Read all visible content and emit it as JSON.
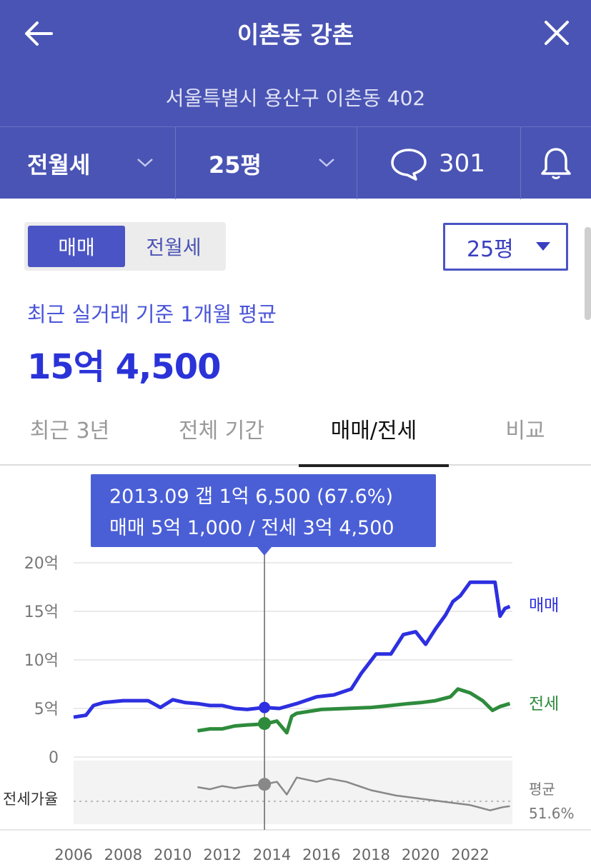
{
  "header": {
    "title": "이촌동 강촌",
    "address": "서울특별시 용산구 이촌동 402",
    "filters": {
      "deal_type": "전월세",
      "size": "25평",
      "comments_count": "301"
    },
    "icons": {
      "back": "arrow-left-icon",
      "close": "close-icon",
      "comment": "speech-bubble-icon",
      "bell": "bell-icon",
      "chevron": "chevron-down-icon"
    }
  },
  "controls": {
    "segment": [
      "매매",
      "전월세"
    ],
    "segment_selected": "매매",
    "size_select": "25평"
  },
  "summary": {
    "label": "최근 실거래 기준 1개월 평균",
    "price": "15억 4,500"
  },
  "tabs": [
    "최근 3년",
    "전체 기간",
    "매매/전세",
    "비교"
  ],
  "selected_tab": "매매/전세",
  "tooltip": {
    "line1": "2013.09  갭 1억 6,500 (67.6%)",
    "line2": "매매 5억 1,000 / 전세 3억 4,500"
  },
  "colors": {
    "header_bg": "#4a54b4",
    "accent": "#4a54c4",
    "sale": "#2d2fe0",
    "jeonse": "#2e8b3c",
    "ratio": "#888888",
    "tooltip_bg": "#4a5fd6"
  },
  "chart_data": {
    "type": "line",
    "title": "",
    "x_tick_labels": [
      "2006",
      "2008",
      "2010",
      "2012",
      "2014",
      "2016",
      "2018",
      "2020",
      "2022"
    ],
    "y_tick_labels": [
      "20억",
      "15억",
      "10억",
      "5억",
      "0"
    ],
    "ylim": [
      0,
      20
    ],
    "xlim": [
      2006,
      2023.7
    ],
    "y_unit": "억",
    "grid": true,
    "series": [
      {
        "name": "매매",
        "x": [
          2006.0,
          2006.5,
          2006.8,
          2007.2,
          2008.0,
          2009.0,
          2009.5,
          2010.0,
          2010.5,
          2011.0,
          2011.5,
          2012.0,
          2012.5,
          2013.0,
          2013.7,
          2014.3,
          2015.0,
          2015.8,
          2016.5,
          2017.2,
          2017.6,
          2018.2,
          2018.8,
          2019.3,
          2019.8,
          2020.2,
          2020.6,
          2021.0,
          2021.3,
          2021.6,
          2022.0,
          2022.5,
          2023.0,
          2023.2,
          2023.4,
          2023.6
        ],
        "values": [
          4.1,
          4.3,
          5.3,
          5.6,
          5.8,
          5.8,
          5.1,
          5.9,
          5.6,
          5.5,
          5.3,
          5.3,
          5.0,
          4.9,
          5.1,
          5.0,
          5.5,
          6.2,
          6.4,
          7.0,
          8.6,
          10.6,
          10.6,
          12.6,
          12.9,
          11.6,
          13.2,
          14.6,
          16.0,
          16.6,
          18.0,
          18.0,
          18.0,
          14.5,
          15.3,
          15.5
        ]
      },
      {
        "name": "전세",
        "x": [
          2011.0,
          2011.5,
          2012.0,
          2012.5,
          2013.0,
          2013.7,
          2014.2,
          2014.6,
          2014.8,
          2015.0,
          2016.0,
          2017.0,
          2018.0,
          2018.8,
          2019.5,
          2020.0,
          2020.6,
          2021.2,
          2021.5,
          2022.0,
          2022.5,
          2022.9,
          2023.2,
          2023.6
        ],
        "values": [
          2.7,
          2.9,
          2.9,
          3.2,
          3.3,
          3.4,
          3.7,
          2.5,
          4.2,
          4.5,
          4.9,
          5.0,
          5.1,
          5.3,
          5.5,
          5.6,
          5.8,
          6.2,
          7.0,
          6.6,
          5.8,
          4.8,
          5.2,
          5.5
        ]
      },
      {
        "name": "전세가율",
        "x": [
          2011.0,
          2011.5,
          2012.0,
          2012.5,
          2013.0,
          2013.7,
          2014.2,
          2014.6,
          2015.0,
          2015.8,
          2016.3,
          2017.0,
          2018.0,
          2019.0,
          2020.0,
          2021.0,
          2022.0,
          2022.8,
          2023.3,
          2023.6
        ],
        "values": [
          65,
          63,
          66,
          64,
          66,
          67.6,
          70,
          58,
          74,
          70,
          73,
          70,
          62,
          57,
          54,
          51,
          48,
          43,
          46,
          47
        ]
      }
    ],
    "series_labels": [
      "매매",
      "전세"
    ],
    "ratio_label": "전세가율",
    "ratio_avg": {
      "label": "평균",
      "value": "51.6%",
      "percent": 51.6
    },
    "cursor": {
      "x": 2013.7,
      "sale": 5.1,
      "jeonse": 3.45,
      "ratio": 67.6
    }
  }
}
